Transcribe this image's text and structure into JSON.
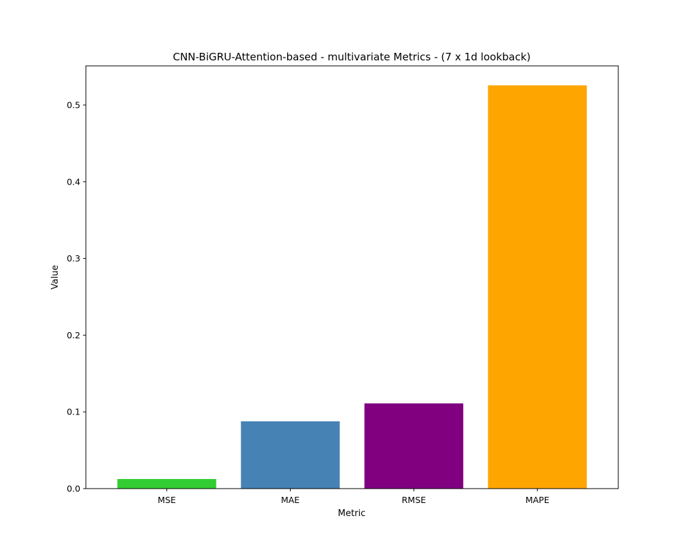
{
  "chart_data": {
    "type": "bar",
    "title": "CNN-BiGRU-Attention-based - multivariate Metrics - (7 x 1d lookback)",
    "xlabel": "Metric",
    "ylabel": "Value",
    "categories": [
      "MSE",
      "MAE",
      "RMSE",
      "MAPE"
    ],
    "values": [
      0.0125,
      0.0877,
      0.1111,
      0.5256
    ],
    "colors": [
      "#32cd32",
      "#4682b4",
      "#800080",
      "#ffa500"
    ],
    "ylim": [
      0,
      0.551
    ],
    "yticks": [
      0.0,
      0.1,
      0.2,
      0.3,
      0.4,
      0.5
    ],
    "ytick_labels": [
      "0.0",
      "0.1",
      "0.2",
      "0.3",
      "0.4",
      "0.5"
    ],
    "grid": false,
    "legend": "none"
  }
}
